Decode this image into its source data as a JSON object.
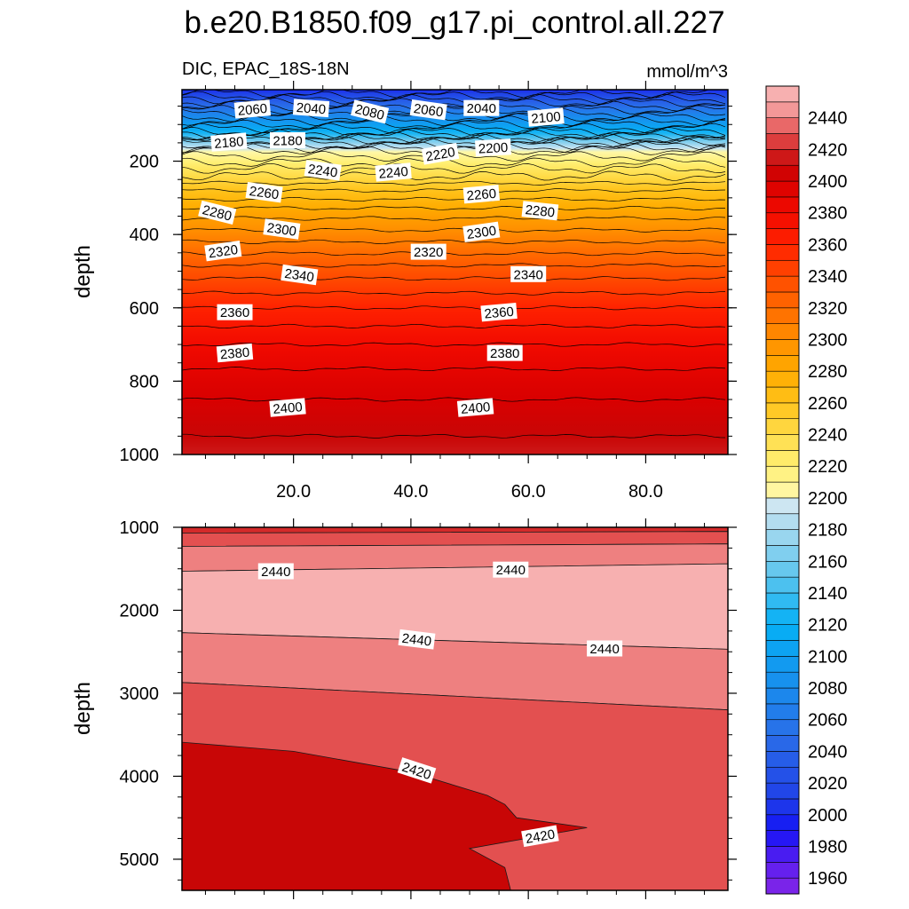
{
  "chart_data": [
    {
      "type": "contour",
      "panel": "upper",
      "title": "b.e20.B1850.f09_g17.pi_control.all.227",
      "subtitle_left": "DIC, EPAC_18S-18N",
      "subtitle_right": "mmol/m^3",
      "xlabel": "",
      "ylabel": "depth",
      "xlim": [
        1,
        94
      ],
      "ylim": [
        1000,
        5
      ],
      "xticks": [
        20,
        40,
        60,
        80
      ],
      "xtick_labels": [
        "20.0",
        "40.0",
        "60.0",
        "80.0"
      ],
      "yticks": [
        200,
        400,
        600,
        800,
        1000
      ],
      "ytick_labels": [
        "200",
        "400",
        "600",
        "800",
        "1000"
      ],
      "depth_profile": [
        {
          "depth": 5,
          "value": 2000
        },
        {
          "depth": 40,
          "value": 2040
        },
        {
          "depth": 80,
          "value": 2080
        },
        {
          "depth": 120,
          "value": 2120
        },
        {
          "depth": 150,
          "value": 2170
        },
        {
          "depth": 170,
          "value": 2200
        },
        {
          "depth": 220,
          "value": 2230
        },
        {
          "depth": 280,
          "value": 2260
        },
        {
          "depth": 340,
          "value": 2285
        },
        {
          "depth": 420,
          "value": 2310
        },
        {
          "depth": 500,
          "value": 2335
        },
        {
          "depth": 600,
          "value": 2360
        },
        {
          "depth": 700,
          "value": 2380
        },
        {
          "depth": 800,
          "value": 2395
        },
        {
          "depth": 900,
          "value": 2405
        },
        {
          "depth": 1000,
          "value": 2415
        }
      ],
      "contour_labels": [
        {
          "text": "2060",
          "x": 13,
          "depth": 58,
          "angle": -5
        },
        {
          "text": "2040",
          "x": 23,
          "depth": 55,
          "angle": 4
        },
        {
          "text": "2080",
          "x": 33,
          "depth": 65,
          "angle": 14
        },
        {
          "text": "2060",
          "x": 43,
          "depth": 60,
          "angle": 8
        },
        {
          "text": "2040",
          "x": 52,
          "depth": 55,
          "angle": 0
        },
        {
          "text": "2100",
          "x": 63,
          "depth": 80,
          "angle": -5
        },
        {
          "text": "2180",
          "x": 9,
          "depth": 148,
          "angle": -5
        },
        {
          "text": "2180",
          "x": 19,
          "depth": 143,
          "angle": 0
        },
        {
          "text": "2200",
          "x": 54,
          "depth": 163,
          "angle": -3
        },
        {
          "text": "2220",
          "x": 45,
          "depth": 180,
          "angle": -10
        },
        {
          "text": "2240",
          "x": 25,
          "depth": 225,
          "angle": 8
        },
        {
          "text": "2240",
          "x": 37,
          "depth": 230,
          "angle": -5
        },
        {
          "text": "2260",
          "x": 15,
          "depth": 285,
          "angle": 8
        },
        {
          "text": "2260",
          "x": 52,
          "depth": 290,
          "angle": -5
        },
        {
          "text": "2280",
          "x": 7,
          "depth": 340,
          "angle": 14
        },
        {
          "text": "2280",
          "x": 62,
          "depth": 335,
          "angle": 6
        },
        {
          "text": "2300",
          "x": 18,
          "depth": 385,
          "angle": 8
        },
        {
          "text": "2300",
          "x": 52,
          "depth": 393,
          "angle": -8
        },
        {
          "text": "2320",
          "x": 8,
          "depth": 445,
          "angle": -8
        },
        {
          "text": "2320",
          "x": 43,
          "depth": 447,
          "angle": 0
        },
        {
          "text": "2340",
          "x": 21,
          "depth": 510,
          "angle": 8
        },
        {
          "text": "2340",
          "x": 60,
          "depth": 508,
          "angle": 0
        },
        {
          "text": "2360",
          "x": 10,
          "depth": 612,
          "angle": 0
        },
        {
          "text": "2360",
          "x": 55,
          "depth": 612,
          "angle": -5
        },
        {
          "text": "2380",
          "x": 10,
          "depth": 723,
          "angle": -5
        },
        {
          "text": "2380",
          "x": 56,
          "depth": 723,
          "angle": 0
        },
        {
          "text": "2400",
          "x": 19,
          "depth": 872,
          "angle": -5
        },
        {
          "text": "2400",
          "x": 51,
          "depth": 872,
          "angle": -5
        }
      ]
    },
    {
      "type": "contour",
      "panel": "lower",
      "xlabel": "",
      "ylabel": "depth",
      "xlim": [
        1,
        94
      ],
      "ylim": [
        5375,
        1000
      ],
      "xticks": [
        20,
        40,
        60,
        80
      ],
      "xtick_labels": [],
      "yticks": [
        1000,
        2000,
        3000,
        4000,
        5000
      ],
      "ytick_labels": [
        "1000",
        "2000",
        "3000",
        "4000",
        "5000"
      ],
      "regions": [
        {
          "value": 2420,
          "boundary": [
            [
              1,
              1000
            ],
            [
              94,
              1000
            ],
            [
              94,
              1050
            ],
            [
              1,
              1070
            ]
          ]
        },
        {
          "value": 2430,
          "boundary": [
            [
              1,
              1070
            ],
            [
              94,
              1050
            ],
            [
              94,
              1200
            ],
            [
              1,
              1230
            ]
          ]
        },
        {
          "value": 2440,
          "boundary": [
            [
              1,
              1230
            ],
            [
              94,
              1200
            ],
            [
              94,
              1440
            ],
            [
              1,
              1530
            ]
          ]
        },
        {
          "value": 2450,
          "boundary": [
            [
              1,
              1530
            ],
            [
              94,
              1440
            ],
            [
              94,
              2470
            ],
            [
              1,
              2270
            ]
          ]
        },
        {
          "value": 2440,
          "boundary": [
            [
              1,
              2270
            ],
            [
              94,
              2470
            ],
            [
              94,
              3200
            ],
            [
              1,
              2870
            ]
          ]
        },
        {
          "value": 2430,
          "boundary": [
            [
              1,
              2870
            ],
            [
              94,
              3200
            ],
            [
              94,
              5375
            ],
            [
              1,
              5375
            ]
          ]
        },
        {
          "value": 2410,
          "boundary": [
            [
              1,
              3590
            ],
            [
              20,
              3700
            ],
            [
              40,
              3950
            ],
            [
              53,
              4230
            ],
            [
              56,
              4340
            ],
            [
              58,
              4500
            ],
            [
              70,
              4620
            ],
            [
              50,
              4870
            ],
            [
              56,
              5100
            ],
            [
              57,
              5375
            ],
            [
              1,
              5375
            ]
          ]
        }
      ],
      "contour_labels": [
        {
          "text": "2440",
          "x": 17,
          "depth": 1530,
          "angle": 0
        },
        {
          "text": "2440",
          "x": 57,
          "depth": 1510,
          "angle": 0
        },
        {
          "text": "2440",
          "x": 41,
          "depth": 2350,
          "angle": 7
        },
        {
          "text": "2440",
          "x": 73,
          "depth": 2460,
          "angle": 0
        },
        {
          "text": "2420",
          "x": 41,
          "depth": 3930,
          "angle": 18
        },
        {
          "text": "2420",
          "x": 62,
          "depth": 4720,
          "angle": -10
        }
      ]
    }
  ],
  "colorbar": {
    "min": 1950,
    "max": 2460,
    "step": 10,
    "tick_labels": [
      "1960",
      "1980",
      "2000",
      "2020",
      "2040",
      "2060",
      "2080",
      "2100",
      "2120",
      "2140",
      "2160",
      "2180",
      "2200",
      "2220",
      "2240",
      "2260",
      "2280",
      "2300",
      "2320",
      "2340",
      "2360",
      "2380",
      "2400",
      "2420",
      "2440"
    ],
    "colors": [
      {
        "value": 1950,
        "color": "#8526e6"
      },
      {
        "value": 1970,
        "color": "#5a1ef0"
      },
      {
        "value": 1990,
        "color": "#1414f5"
      },
      {
        "value": 2010,
        "color": "#2040e8"
      },
      {
        "value": 2050,
        "color": "#2a6ee8"
      },
      {
        "value": 2090,
        "color": "#1496ef"
      },
      {
        "value": 2120,
        "color": "#06b0f5"
      },
      {
        "value": 2150,
        "color": "#5ac4ee"
      },
      {
        "value": 2180,
        "color": "#a6d9ef"
      },
      {
        "value": 2195,
        "color": "#cde6f2"
      },
      {
        "value": 2200,
        "color": "#fff8b0"
      },
      {
        "value": 2220,
        "color": "#fff075"
      },
      {
        "value": 2240,
        "color": "#ffdc4a"
      },
      {
        "value": 2260,
        "color": "#ffc31a"
      },
      {
        "value": 2280,
        "color": "#ffab00"
      },
      {
        "value": 2300,
        "color": "#ff8f00"
      },
      {
        "value": 2320,
        "color": "#ff6a00"
      },
      {
        "value": 2340,
        "color": "#ff4a00"
      },
      {
        "value": 2360,
        "color": "#ff2200"
      },
      {
        "value": 2380,
        "color": "#f20a00"
      },
      {
        "value": 2400,
        "color": "#d90000"
      },
      {
        "value": 2410,
        "color": "#c80606"
      },
      {
        "value": 2420,
        "color": "#d42a2a"
      },
      {
        "value": 2430,
        "color": "#e35050"
      },
      {
        "value": 2440,
        "color": "#ee8080"
      },
      {
        "value": 2450,
        "color": "#f7b0b0"
      }
    ]
  }
}
